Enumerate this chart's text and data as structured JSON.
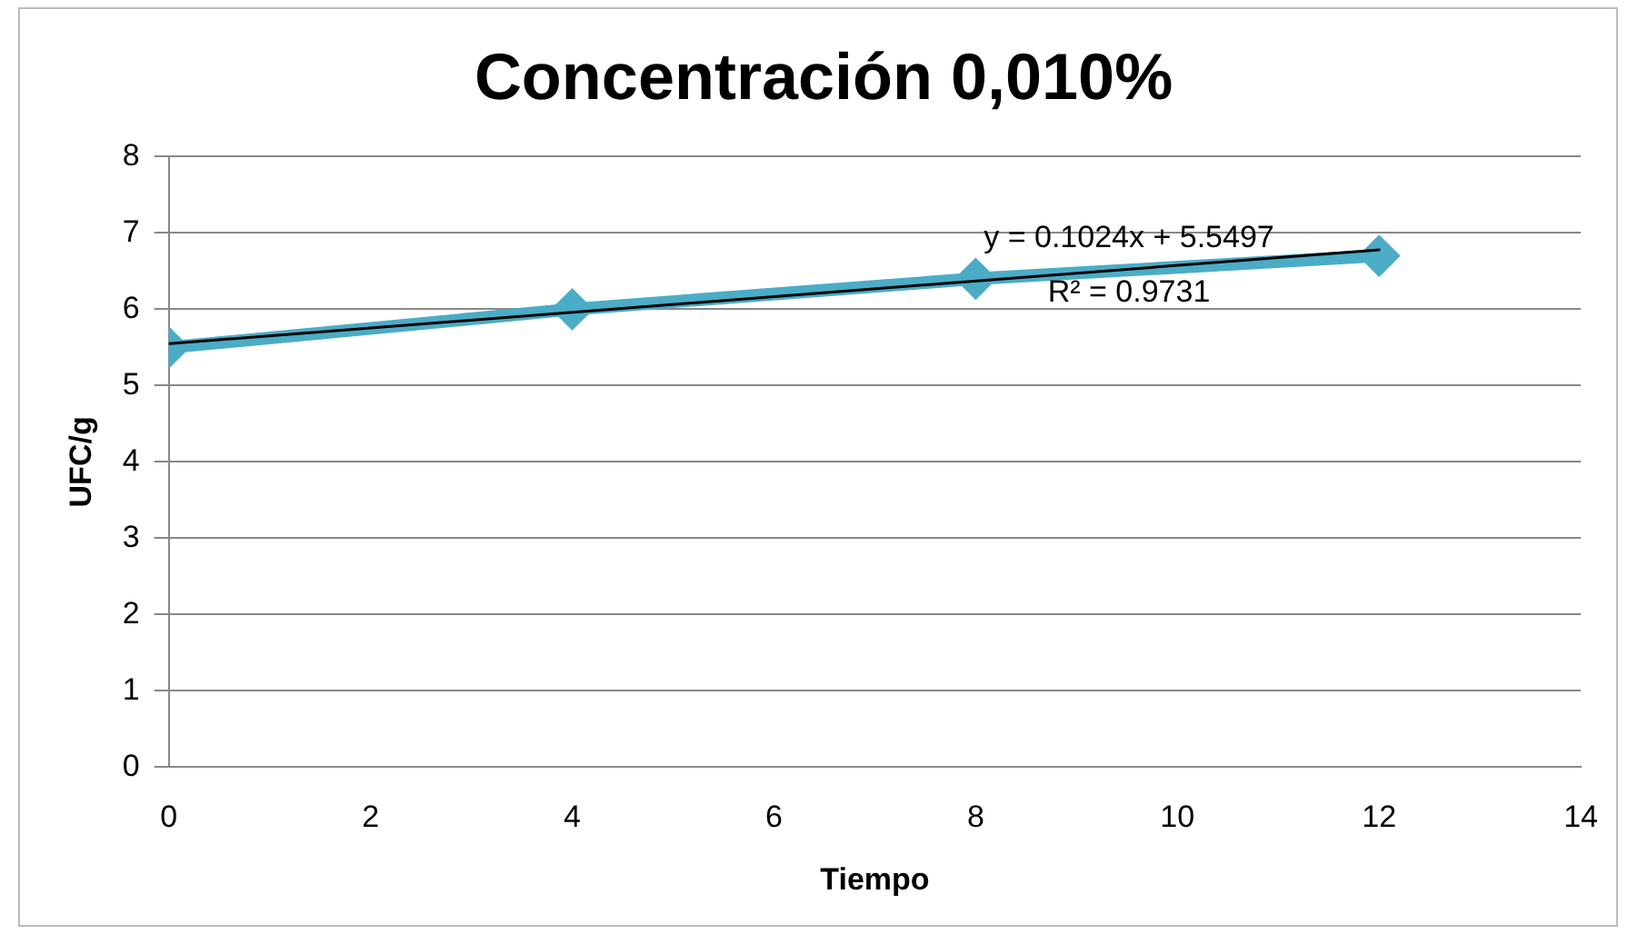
{
  "chart_data": {
    "type": "line",
    "title": "Concentración 0,010%",
    "xlabel": "Tiempo",
    "ylabel": "UFC/g",
    "x": [
      0,
      4,
      8,
      12
    ],
    "series": [
      {
        "color": "#4bacc6",
        "values": [
          5.5,
          6.0,
          6.4,
          6.7
        ],
        "marker": "diamond"
      },
      {
        "type": "line",
        "color": "#000000",
        "x": [
          0,
          12
        ],
        "values": [
          5.55,
          6.78
        ],
        "marker": "none"
      }
    ],
    "xlim": [
      0,
      14
    ],
    "xticks": [
      0,
      2,
      4,
      6,
      8,
      10,
      12,
      14
    ],
    "ylim": [
      0,
      8
    ],
    "yticks": [
      0,
      1,
      2,
      3,
      4,
      5,
      6,
      7,
      8
    ],
    "grid": "y",
    "legend": false,
    "annotations": [
      "y = 0.1024x + 5.5497",
      "R² = 0.9731"
    ]
  }
}
